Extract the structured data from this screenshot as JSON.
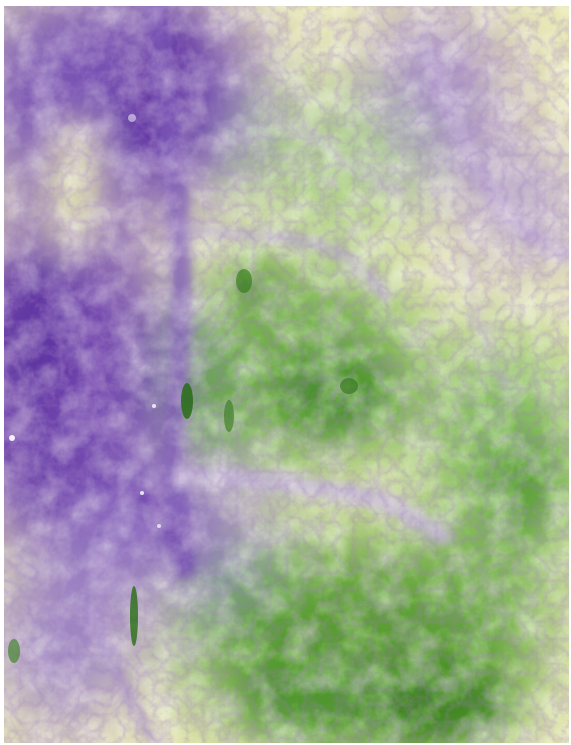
{
  "map": {
    "type": "elevation-relief-raster",
    "color_ramp": {
      "low": "#5a2d9e",
      "mid_low": "#a98fcb",
      "mid": "#f6f6c4",
      "mid_high": "#8ec26a",
      "high": "#2e7d12"
    },
    "background": "#ffffff"
  }
}
